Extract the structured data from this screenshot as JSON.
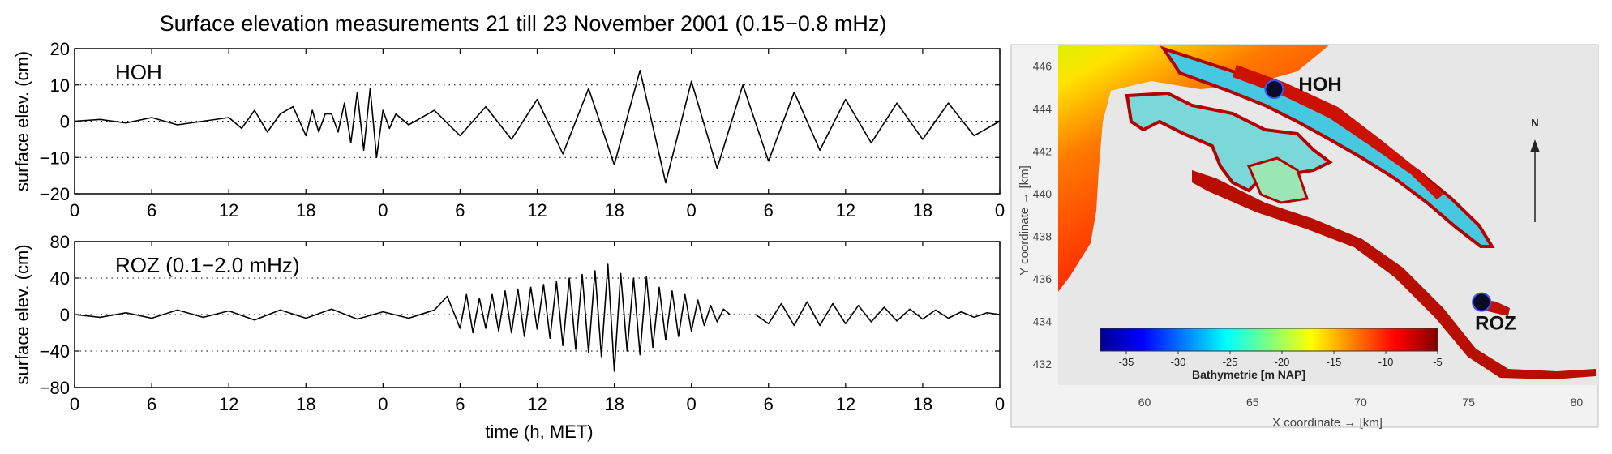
{
  "figure": {
    "title": "Surface elevation measurements 21 till 23 November 2001 (0.15−0.8 mHz)",
    "xlabel": "time (h, MET)"
  },
  "chart_data": [
    {
      "type": "line",
      "panel_label": "HOH",
      "ylabel": "surface elev. (cm)",
      "ylim": [
        -20,
        20
      ],
      "yticks": [
        "20",
        "10",
        "0",
        "−10",
        "−20"
      ],
      "xticks": [
        "0",
        "6",
        "12",
        "18",
        "0",
        "6",
        "12",
        "18",
        "0",
        "6",
        "12",
        "18",
        "0"
      ],
      "xlim": [
        0,
        72
      ],
      "dotted_gridlines_y": [
        10,
        0,
        -10
      ],
      "series": [
        {
          "x": [
            0,
            2,
            4,
            6,
            8,
            10,
            12,
            13,
            14,
            15,
            16,
            17,
            18,
            18.5,
            19,
            19.5,
            20,
            20.5,
            21,
            21.5,
            22,
            22.5,
            23,
            23.5,
            24,
            24.5,
            25,
            26,
            28,
            30,
            32,
            34,
            36,
            38,
            40,
            42,
            44,
            46,
            48,
            50,
            52,
            54,
            56,
            58,
            60,
            62,
            64,
            66,
            68,
            70,
            72
          ],
          "y": [
            0,
            0.5,
            -0.5,
            1,
            -1,
            0,
            1,
            -2,
            3,
            -3,
            2,
            4,
            -4,
            3,
            -3,
            2,
            2,
            -3,
            5,
            -6,
            8,
            -8,
            9,
            -10,
            3,
            -2,
            2,
            -1,
            3,
            -4,
            4,
            -5,
            6,
            -9,
            9,
            -12,
            14,
            -17,
            11,
            -13,
            10,
            -11,
            8,
            -8,
            6,
            -6,
            5,
            -5,
            5,
            -4,
            0
          ]
        }
      ]
    },
    {
      "type": "line",
      "panel_label": "ROZ (0.1−2.0 mHz)",
      "ylabel": "surface elev. (cm)",
      "ylim": [
        -80,
        80
      ],
      "yticks": [
        "80",
        "40",
        "0",
        "−40",
        "−80"
      ],
      "xticks": [
        "0",
        "6",
        "12",
        "18",
        "0",
        "6",
        "12",
        "18",
        "0",
        "6",
        "12",
        "18",
        "0"
      ],
      "xlim": [
        0,
        72
      ],
      "dotted_gridlines_y": [
        40,
        0,
        -40
      ],
      "series": [
        {
          "x": [
            0,
            2,
            4,
            6,
            8,
            10,
            12,
            14,
            16,
            18,
            20,
            22,
            24,
            26,
            28,
            29,
            30,
            30.5,
            31,
            31.5,
            32,
            32.5,
            33,
            33.5,
            34,
            34.5,
            35,
            35.5,
            36,
            36.5,
            37,
            37.5,
            38,
            38.5,
            39,
            39.5,
            40,
            40.5,
            41,
            41.5,
            42,
            42.5,
            43,
            43.5,
            44,
            44.5,
            45,
            45.5,
            46,
            46.5,
            47,
            47.5,
            48,
            48.5,
            49,
            49.5,
            50,
            50.5,
            51
          ],
          "y": [
            0,
            -3,
            2,
            -4,
            5,
            -3,
            4,
            -6,
            5,
            -4,
            6,
            -5,
            3,
            -4,
            5,
            20,
            -15,
            22,
            -20,
            18,
            -15,
            22,
            -18,
            26,
            -20,
            28,
            -24,
            30,
            -16,
            33,
            -26,
            36,
            -34,
            40,
            -38,
            44,
            -42,
            48,
            -46,
            55,
            -62,
            45,
            -40,
            40,
            -44,
            42,
            -36,
            30,
            -28,
            26,
            -24,
            22,
            -18,
            16,
            -12,
            10,
            -8,
            6,
            0
          ]
        },
        {
          "x": [
            53,
            54,
            55,
            56,
            57,
            58,
            59,
            60,
            61,
            62,
            63,
            64,
            65,
            66,
            67,
            68,
            69,
            70,
            71,
            72
          ],
          "y": [
            0,
            -10,
            12,
            -12,
            14,
            -12,
            12,
            -10,
            10,
            -8,
            8,
            -7,
            6,
            -5,
            5,
            -4,
            3,
            -3,
            2,
            0
          ]
        }
      ]
    },
    {
      "type": "heatmap",
      "xlabel": "X coordinate → [km]",
      "ylabel": "Y coordinate → [km]",
      "xticks": [
        "60",
        "65",
        "70",
        "75",
        "80"
      ],
      "yticks": [
        "446",
        "444",
        "442",
        "440",
        "438",
        "436",
        "434",
        "432"
      ],
      "xlim": [
        56,
        81
      ],
      "ylim": [
        431,
        447
      ],
      "colorbar": {
        "label": "Bathymetrie [m NAP]",
        "ticks": [
          "-35",
          "-30",
          "-25",
          "-20",
          "-15",
          "-10",
          "-5"
        ],
        "range": [
          -37.5,
          -5
        ]
      },
      "stations": [
        {
          "name": "HOH",
          "x": 66,
          "y": 444.9
        },
        {
          "name": "ROZ",
          "x": 75.6,
          "y": 434.9
        }
      ],
      "north_label": "N"
    }
  ]
}
